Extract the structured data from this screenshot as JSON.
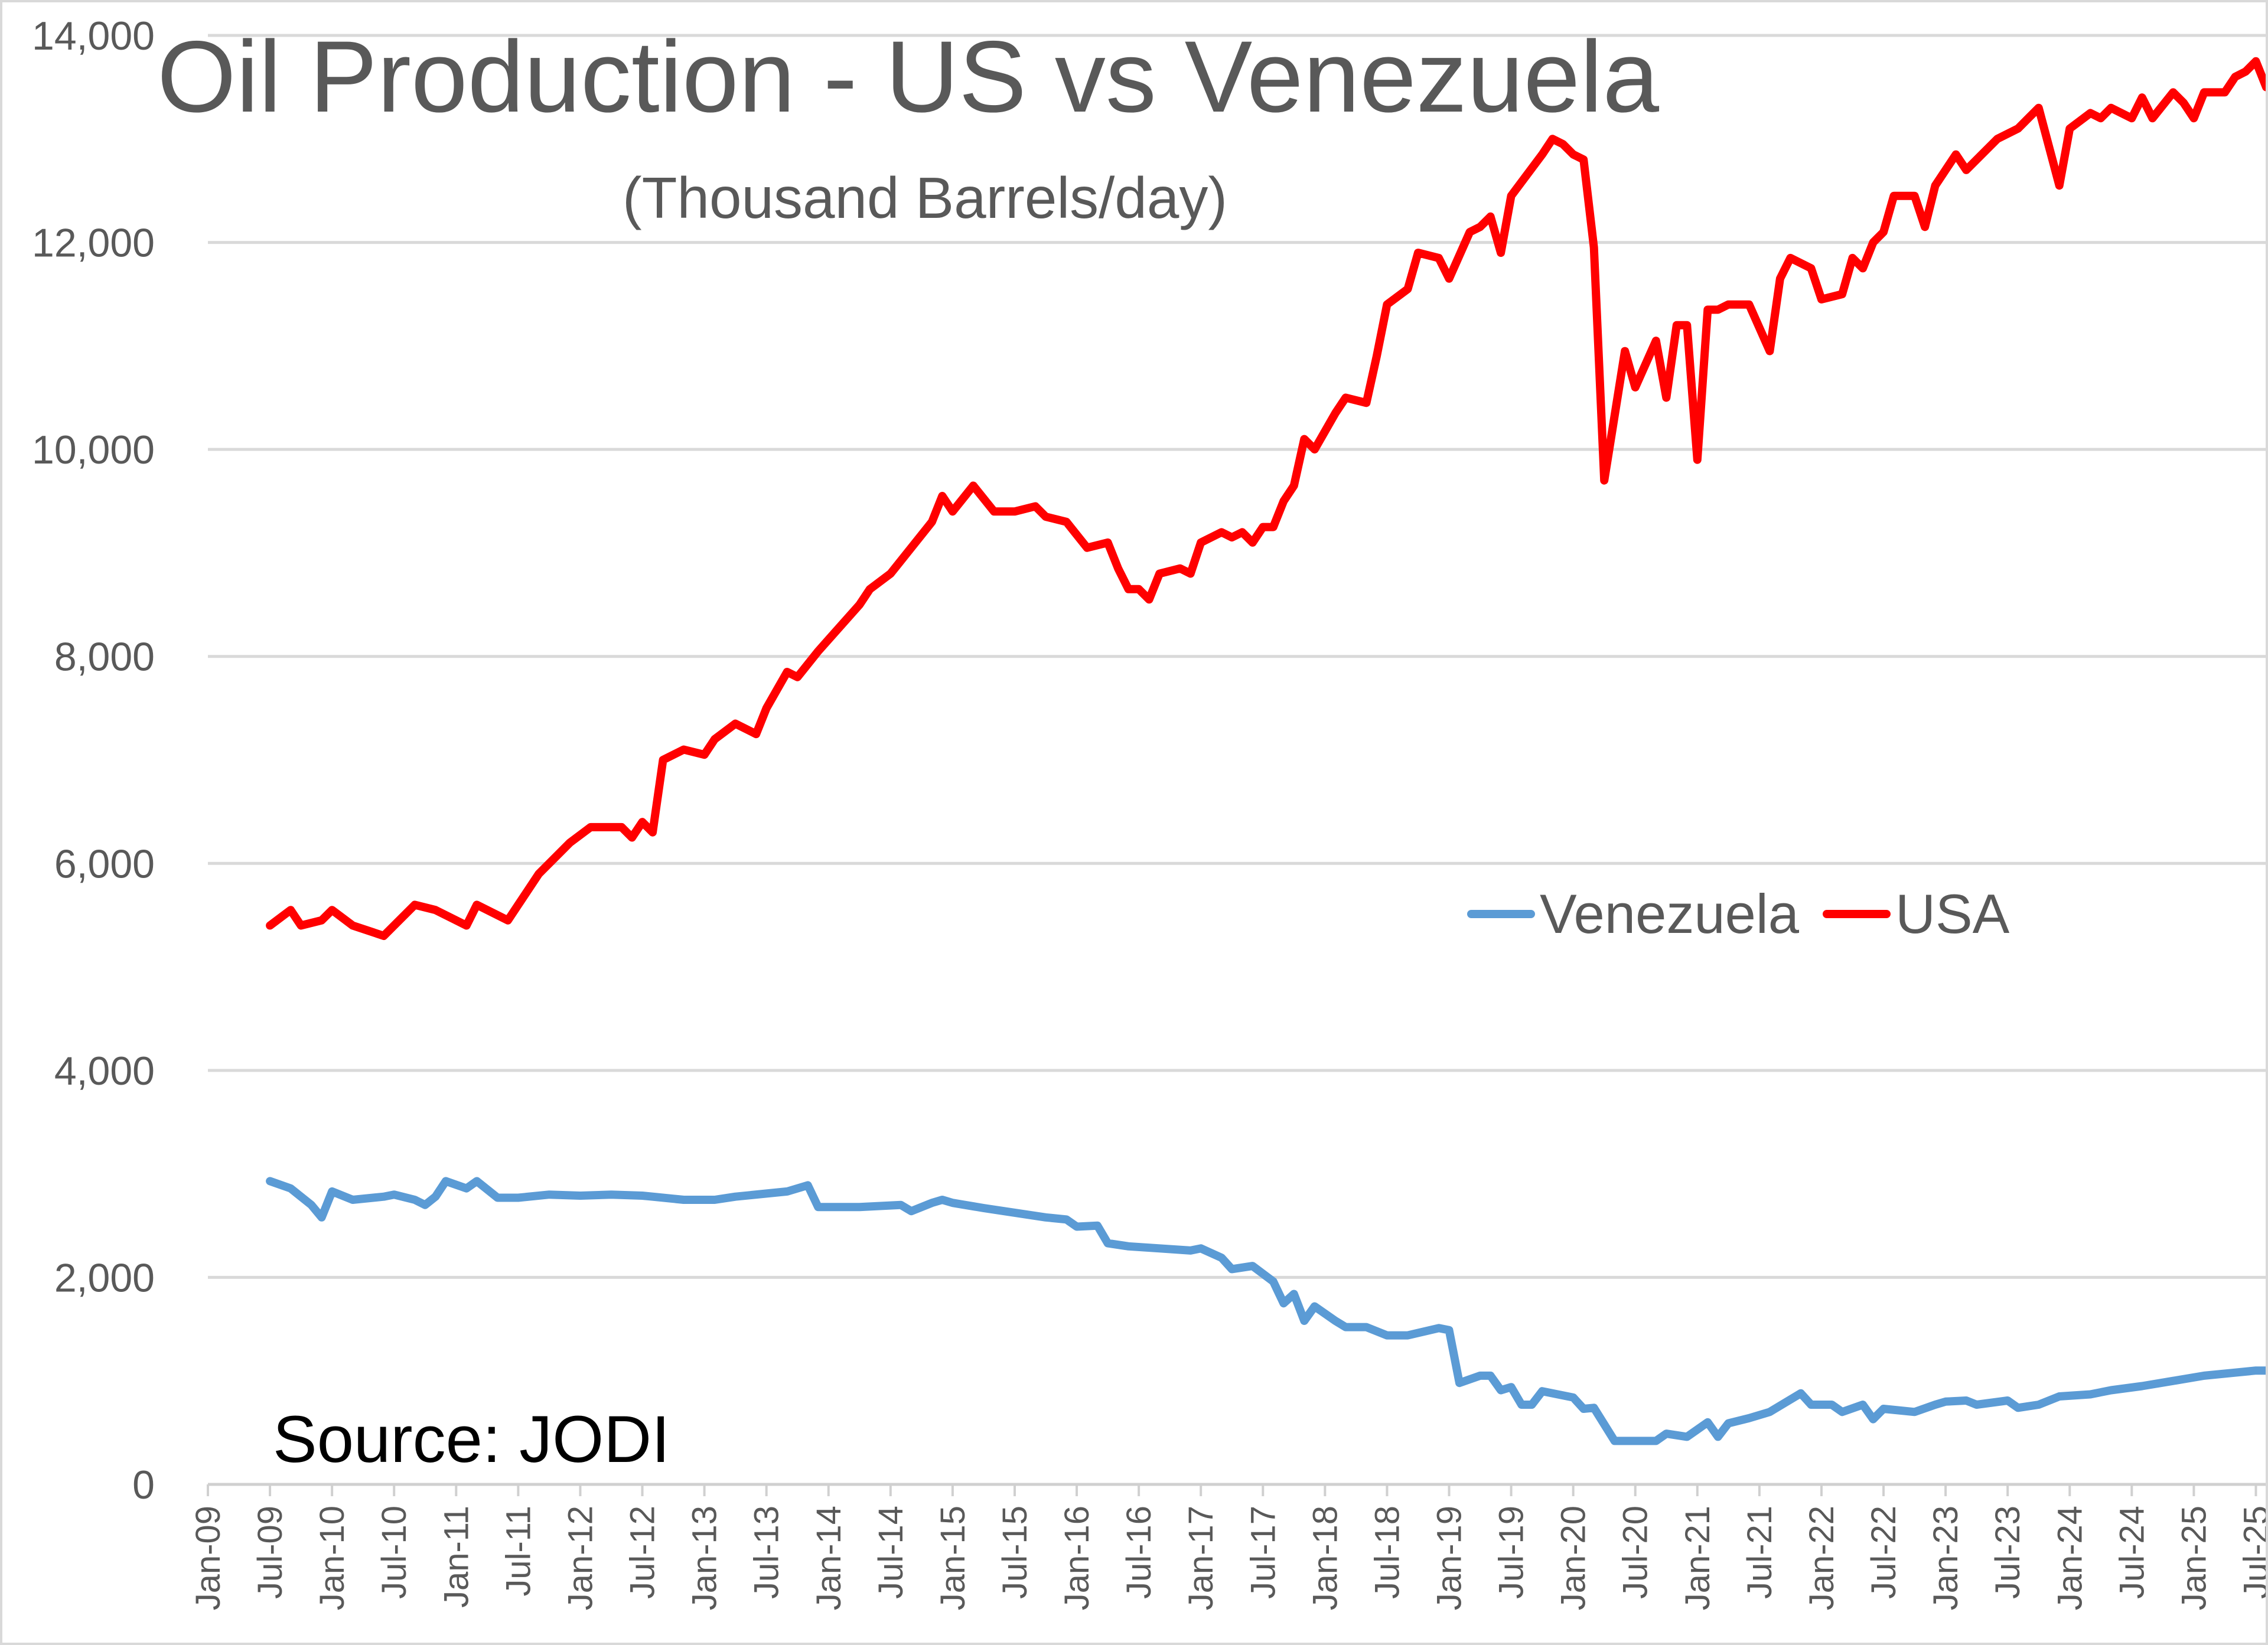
{
  "chart_data": {
    "type": "line",
    "title": "Oil Production - US vs Venezuela",
    "subtitle": "(Thousand Barrels/day)",
    "annotation": "Source:  JODI",
    "xlabel": "",
    "ylabel": "",
    "ylim": [
      0,
      14000
    ],
    "yticks": [
      "0",
      "2,000",
      "4,000",
      "6,000",
      "8,000",
      "10,000",
      "12,000",
      "14,000"
    ],
    "xlim": [
      "2009-01",
      "2025-08"
    ],
    "xticks": [
      "Jan-09",
      "Jul-09",
      "Jan-10",
      "Jul-10",
      "Jan-11",
      "Jul-11",
      "Jan-12",
      "Jul-12",
      "Jan-13",
      "Jul-13",
      "Jan-14",
      "Jul-14",
      "Jan-15",
      "Jul-15",
      "Jan-16",
      "Jul-16",
      "Jan-17",
      "Jul-17",
      "Jan-18",
      "Jul-18",
      "Jan-19",
      "Jul-19",
      "Jan-20",
      "Jul-20",
      "Jan-21",
      "Jul-21",
      "Jan-22",
      "Jul-22",
      "Jan-23",
      "Jul-23",
      "Jan-24",
      "Jul-24",
      "Jan-25",
      "Jul-25"
    ],
    "grid": true,
    "legend_position": "right-middle",
    "series": [
      {
        "name": "Venezuela",
        "color": "#5B9BD5",
        "points": [
          [
            "2009-07",
            2930
          ],
          [
            "2009-09",
            2860
          ],
          [
            "2009-11",
            2700
          ],
          [
            "2009-12",
            2580
          ],
          [
            "2010-01",
            2830
          ],
          [
            "2010-03",
            2750
          ],
          [
            "2010-06",
            2780
          ],
          [
            "2010-07",
            2800
          ],
          [
            "2010-09",
            2750
          ],
          [
            "2010-10",
            2700
          ],
          [
            "2010-11",
            2780
          ],
          [
            "2010-12",
            2930
          ],
          [
            "2011-02",
            2860
          ],
          [
            "2011-03",
            2930
          ],
          [
            "2011-05",
            2770
          ],
          [
            "2011-07",
            2770
          ],
          [
            "2011-10",
            2800
          ],
          [
            "2012-01",
            2790
          ],
          [
            "2012-04",
            2800
          ],
          [
            "2012-07",
            2790
          ],
          [
            "2012-08",
            2780
          ],
          [
            "2012-11",
            2750
          ],
          [
            "2013-02",
            2750
          ],
          [
            "2013-04",
            2780
          ],
          [
            "2013-09",
            2830
          ],
          [
            "2013-11",
            2890
          ],
          [
            "2013-12",
            2680
          ],
          [
            "2014-04",
            2680
          ],
          [
            "2014-08",
            2700
          ],
          [
            "2014-09",
            2640
          ],
          [
            "2014-11",
            2720
          ],
          [
            "2014-12",
            2750
          ],
          [
            "2015-01",
            2720
          ],
          [
            "2015-04",
            2670
          ],
          [
            "2015-10",
            2580
          ],
          [
            "2015-12",
            2560
          ],
          [
            "2016-01",
            2490
          ],
          [
            "2016-03",
            2500
          ],
          [
            "2016-04",
            2330
          ],
          [
            "2016-06",
            2300
          ],
          [
            "2016-09",
            2280
          ],
          [
            "2016-12",
            2260
          ],
          [
            "2017-01",
            2280
          ],
          [
            "2017-03",
            2190
          ],
          [
            "2017-04",
            2080
          ],
          [
            "2017-06",
            2110
          ],
          [
            "2017-08",
            1960
          ],
          [
            "2017-09",
            1750
          ],
          [
            "2017-10",
            1840
          ],
          [
            "2017-11",
            1580
          ],
          [
            "2017-12",
            1720
          ],
          [
            "2018-02",
            1580
          ],
          [
            "2018-03",
            1520
          ],
          [
            "2018-05",
            1520
          ],
          [
            "2018-07",
            1440
          ],
          [
            "2018-09",
            1440
          ],
          [
            "2018-12",
            1510
          ],
          [
            "2019-01",
            1490
          ],
          [
            "2019-02",
            980
          ],
          [
            "2019-04",
            1050
          ],
          [
            "2019-05",
            1050
          ],
          [
            "2019-06",
            910
          ],
          [
            "2019-07",
            940
          ],
          [
            "2019-08",
            770
          ],
          [
            "2019-09",
            770
          ],
          [
            "2019-10",
            900
          ],
          [
            "2020-01",
            840
          ],
          [
            "2020-02",
            730
          ],
          [
            "2020-03",
            740
          ],
          [
            "2020-05",
            420
          ],
          [
            "2020-09",
            420
          ],
          [
            "2020-10",
            490
          ],
          [
            "2020-12",
            460
          ],
          [
            "2021-01",
            530
          ],
          [
            "2021-02",
            600
          ],
          [
            "2021-03",
            460
          ],
          [
            "2021-04",
            590
          ],
          [
            "2021-06",
            640
          ],
          [
            "2021-08",
            700
          ],
          [
            "2021-10",
            820
          ],
          [
            "2021-11",
            880
          ],
          [
            "2021-12",
            770
          ],
          [
            "2022-02",
            770
          ],
          [
            "2022-03",
            700
          ],
          [
            "2022-05",
            770
          ],
          [
            "2022-06",
            630
          ],
          [
            "2022-07",
            730
          ],
          [
            "2022-10",
            700
          ],
          [
            "2022-12",
            770
          ],
          [
            "2023-01",
            800
          ],
          [
            "2023-03",
            810
          ],
          [
            "2023-04",
            770
          ],
          [
            "2023-07",
            810
          ],
          [
            "2023-08",
            740
          ],
          [
            "2023-10",
            770
          ],
          [
            "2023-12",
            850
          ],
          [
            "2024-03",
            870
          ],
          [
            "2024-05",
            910
          ],
          [
            "2024-08",
            950
          ],
          [
            "2024-11",
            1000
          ],
          [
            "2025-02",
            1050
          ],
          [
            "2025-05",
            1080
          ],
          [
            "2025-07",
            1100
          ],
          [
            "2025-08",
            1100
          ]
        ]
      },
      {
        "name": "USA",
        "color": "#FF0000",
        "points": [
          [
            "2009-07",
            5400
          ],
          [
            "2009-09",
            5550
          ],
          [
            "2009-10",
            5400
          ],
          [
            "2009-12",
            5450
          ],
          [
            "2010-01",
            5550
          ],
          [
            "2010-03",
            5400
          ],
          [
            "2010-06",
            5300
          ],
          [
            "2010-09",
            5600
          ],
          [
            "2010-11",
            5550
          ],
          [
            "2011-02",
            5400
          ],
          [
            "2011-03",
            5600
          ],
          [
            "2011-06",
            5450
          ],
          [
            "2011-07",
            5600
          ],
          [
            "2011-09",
            5900
          ],
          [
            "2011-12",
            6200
          ],
          [
            "2012-02",
            6350
          ],
          [
            "2012-05",
            6350
          ],
          [
            "2012-06",
            6250
          ],
          [
            "2012-07",
            6400
          ],
          [
            "2012-08",
            6300
          ],
          [
            "2012-09",
            7000
          ],
          [
            "2012-11",
            7100
          ],
          [
            "2013-01",
            7050
          ],
          [
            "2013-02",
            7200
          ],
          [
            "2013-04",
            7350
          ],
          [
            "2013-06",
            7250
          ],
          [
            "2013-07",
            7500
          ],
          [
            "2013-09",
            7850
          ],
          [
            "2013-10",
            7800
          ],
          [
            "2013-12",
            8050
          ],
          [
            "2014-04",
            8500
          ],
          [
            "2014-05",
            8650
          ],
          [
            "2014-07",
            8800
          ],
          [
            "2014-11",
            9300
          ],
          [
            "2014-12",
            9550
          ],
          [
            "2015-01",
            9400
          ],
          [
            "2015-03",
            9650
          ],
          [
            "2015-05",
            9400
          ],
          [
            "2015-07",
            9400
          ],
          [
            "2015-09",
            9450
          ],
          [
            "2015-10",
            9350
          ],
          [
            "2015-12",
            9300
          ],
          [
            "2016-02",
            9050
          ],
          [
            "2016-04",
            9100
          ],
          [
            "2016-05",
            8850
          ],
          [
            "2016-06",
            8650
          ],
          [
            "2016-07",
            8650
          ],
          [
            "2016-08",
            8550
          ],
          [
            "2016-09",
            8800
          ],
          [
            "2016-11",
            8850
          ],
          [
            "2016-12",
            8800
          ],
          [
            "2017-01",
            9100
          ],
          [
            "2017-03",
            9200
          ],
          [
            "2017-04",
            9150
          ],
          [
            "2017-05",
            9200
          ],
          [
            "2017-06",
            9100
          ],
          [
            "2017-07",
            9250
          ],
          [
            "2017-08",
            9250
          ],
          [
            "2017-09",
            9500
          ],
          [
            "2017-10",
            9650
          ],
          [
            "2017-11",
            10100
          ],
          [
            "2017-12",
            10000
          ],
          [
            "2018-02",
            10350
          ],
          [
            "2018-03",
            10500
          ],
          [
            "2018-05",
            10450
          ],
          [
            "2018-06",
            10900
          ],
          [
            "2018-07",
            11400
          ],
          [
            "2018-09",
            11550
          ],
          [
            "2018-10",
            11900
          ],
          [
            "2018-12",
            11850
          ],
          [
            "2019-01",
            11650
          ],
          [
            "2019-03",
            12100
          ],
          [
            "2019-04",
            12150
          ],
          [
            "2019-05",
            12250
          ],
          [
            "2019-06",
            11900
          ],
          [
            "2019-07",
            12450
          ],
          [
            "2019-10",
            12850
          ],
          [
            "2019-11",
            13000
          ],
          [
            "2019-12",
            12950
          ],
          [
            "2020-01",
            12850
          ],
          [
            "2020-02",
            12800
          ],
          [
            "2020-03",
            11950
          ],
          [
            "2020-04",
            9700
          ],
          [
            "2020-06",
            10950
          ],
          [
            "2020-07",
            10600
          ],
          [
            "2020-09",
            11050
          ],
          [
            "2020-10",
            10500
          ],
          [
            "2020-11",
            11200
          ],
          [
            "2020-12",
            11200
          ],
          [
            "2021-01",
            9900
          ],
          [
            "2021-02",
            11350
          ],
          [
            "2021-03",
            11350
          ],
          [
            "2021-04",
            11400
          ],
          [
            "2021-06",
            11400
          ],
          [
            "2021-08",
            10950
          ],
          [
            "2021-09",
            11650
          ],
          [
            "2021-10",
            11850
          ],
          [
            "2021-12",
            11750
          ],
          [
            "2022-01",
            11450
          ],
          [
            "2022-03",
            11500
          ],
          [
            "2022-04",
            11850
          ],
          [
            "2022-05",
            11750
          ],
          [
            "2022-06",
            12000
          ],
          [
            "2022-07",
            12100
          ],
          [
            "2022-08",
            12450
          ],
          [
            "2022-10",
            12450
          ],
          [
            "2022-11",
            12150
          ],
          [
            "2022-12",
            12550
          ],
          [
            "2023-02",
            12850
          ],
          [
            "2023-03",
            12700
          ],
          [
            "2023-06",
            13000
          ],
          [
            "2023-08",
            13100
          ],
          [
            "2023-09",
            13200
          ],
          [
            "2023-10",
            13300
          ],
          [
            "2023-12",
            12550
          ],
          [
            "2024-01",
            13100
          ],
          [
            "2024-03",
            13250
          ],
          [
            "2024-04",
            13200
          ],
          [
            "2024-05",
            13300
          ],
          [
            "2024-07",
            13200
          ],
          [
            "2024-08",
            13400
          ],
          [
            "2024-09",
            13200
          ],
          [
            "2024-11",
            13450
          ],
          [
            "2024-12",
            13350
          ],
          [
            "2025-01",
            13200
          ],
          [
            "2025-02",
            13450
          ],
          [
            "2025-04",
            13450
          ],
          [
            "2025-05",
            13600
          ],
          [
            "2025-06",
            13650
          ],
          [
            "2025-07",
            13750
          ],
          [
            "2025-08",
            13500
          ]
        ]
      }
    ]
  }
}
